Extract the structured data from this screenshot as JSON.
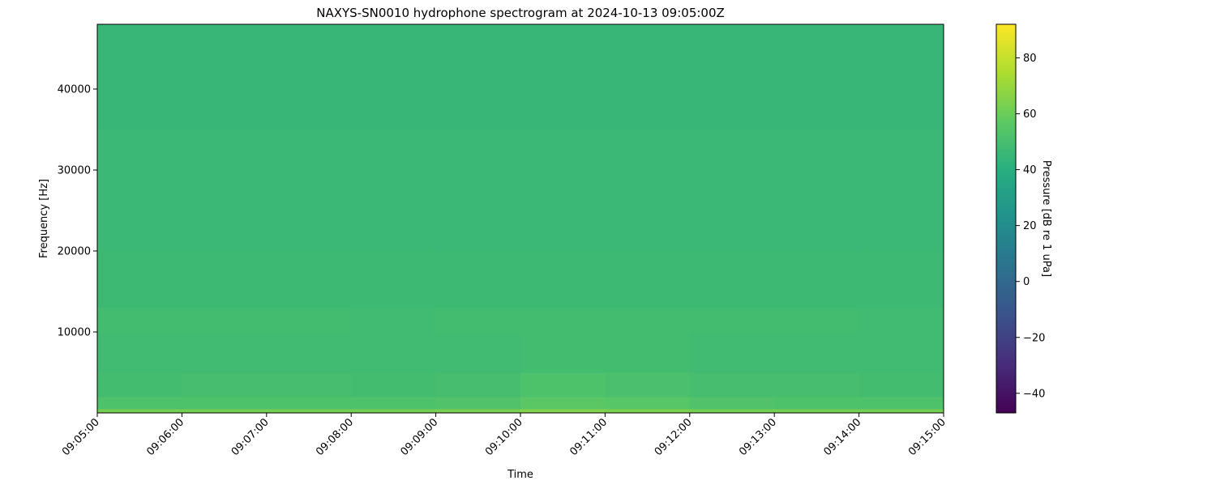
{
  "chart_data": {
    "type": "heatmap",
    "title": "NAXYS-SN0010 hydrophone spectrogram at 2024-10-13 09:05:00Z",
    "xlabel": "Time",
    "ylabel": "Frequency [Hz]",
    "colorbar_label": "Pressure [dB re 1 uPa]",
    "colormap": "viridis",
    "x_ticks": [
      "09:05:00",
      "09:06:00",
      "09:07:00",
      "09:08:00",
      "09:09:00",
      "09:10:00",
      "09:11:00",
      "09:12:00",
      "09:13:00",
      "09:14:00",
      "09:15:00"
    ],
    "y_ticks": [
      10000,
      20000,
      30000,
      40000
    ],
    "ylim": [
      0,
      48000
    ],
    "clim": [
      -47,
      92
    ],
    "colorbar_ticks": [
      -40,
      -20,
      0,
      20,
      40,
      60,
      80
    ],
    "time_bins": [
      "09:05",
      "09:06",
      "09:07",
      "09:08",
      "09:09",
      "09:10",
      "09:11",
      "09:12",
      "09:13",
      "09:14"
    ],
    "freq_bands_hz": [
      [
        0,
        500
      ],
      [
        500,
        2000
      ],
      [
        2000,
        5000
      ],
      [
        5000,
        10000
      ],
      [
        10000,
        13000
      ],
      [
        13000,
        20000
      ],
      [
        20000,
        35000
      ],
      [
        35000,
        48000
      ]
    ],
    "values_db": [
      [
        62,
        62,
        62,
        62,
        63,
        65,
        64,
        62,
        62,
        62
      ],
      [
        52,
        52,
        52,
        52,
        53,
        56,
        55,
        53,
        52,
        52
      ],
      [
        49,
        50,
        50,
        49,
        50,
        52,
        51,
        50,
        50,
        49
      ],
      [
        48,
        48,
        48,
        48,
        48,
        49,
        49,
        48,
        48,
        48
      ],
      [
        49,
        49,
        49,
        48,
        49,
        49,
        49,
        49,
        49,
        48
      ],
      [
        47,
        47,
        47,
        47,
        47,
        47,
        47,
        47,
        47,
        47
      ],
      [
        46,
        46,
        46,
        46,
        46,
        46,
        46,
        46,
        46,
        46
      ],
      [
        45,
        45,
        45,
        45,
        45,
        45,
        45,
        45,
        45,
        45
      ]
    ]
  }
}
